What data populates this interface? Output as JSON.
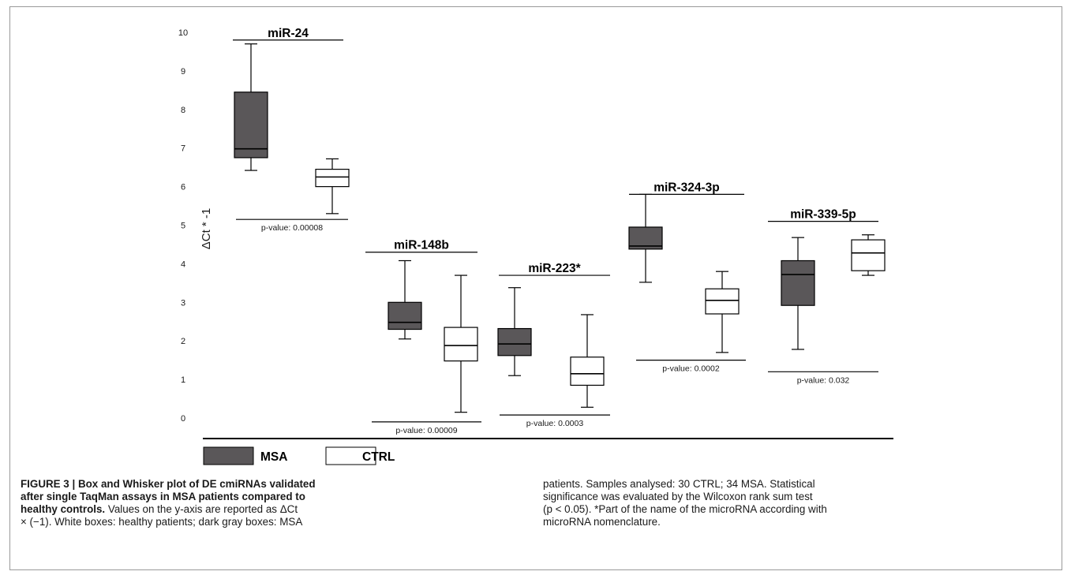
{
  "colors": {
    "msa": "#5a5759",
    "ctrl": "#ffffff",
    "line": "#000000"
  },
  "chart_data": {
    "type": "box",
    "ylabel": "ΔCt * -1",
    "ylim": [
      -0.5,
      10
    ],
    "yticks": [
      0,
      1,
      2,
      3,
      4,
      5,
      6,
      7,
      8,
      9,
      10
    ],
    "legend": [
      {
        "key": "msa",
        "label": "MSA"
      },
      {
        "key": "ctrl",
        "label": "CTRL"
      }
    ],
    "groups": [
      {
        "name": "miR-24",
        "title_y": 9.8,
        "pvalue_label": "p-value: 0.00008",
        "pvalue_y": 5.15,
        "boxes": [
          {
            "key": "msa",
            "min": 6.42,
            "q1": 6.75,
            "median": 6.98,
            "q3": 8.45,
            "max": 9.7
          },
          {
            "key": "ctrl",
            "min": 5.3,
            "q1": 6.0,
            "median": 6.25,
            "q3": 6.45,
            "max": 6.72
          }
        ]
      },
      {
        "name": "miR-148b",
        "title_y": 4.3,
        "pvalue_label": "p-value: 0.00009",
        "pvalue_y": -0.1,
        "boxes": [
          {
            "key": "msa",
            "min": 2.05,
            "q1": 2.3,
            "median": 2.48,
            "q3": 3.0,
            "max": 4.08
          },
          {
            "key": "ctrl",
            "min": 0.15,
            "q1": 1.48,
            "median": 1.88,
            "q3": 2.35,
            "max": 3.7
          }
        ]
      },
      {
        "name": "miR-223*",
        "title_y": 3.7,
        "pvalue_label": "p-value: 0.0003",
        "pvalue_y": 0.08,
        "boxes": [
          {
            "key": "msa",
            "min": 1.1,
            "q1": 1.62,
            "median": 1.92,
            "q3": 2.32,
            "max": 3.38
          },
          {
            "key": "ctrl",
            "min": 0.28,
            "q1": 0.85,
            "median": 1.15,
            "q3": 1.58,
            "max": 2.68
          }
        ]
      },
      {
        "name": "miR-324-3p",
        "title_y": 5.8,
        "pvalue_label": "p-value: 0.0002",
        "pvalue_y": 1.5,
        "boxes": [
          {
            "key": "msa",
            "min": 3.52,
            "q1": 4.38,
            "median": 4.46,
            "q3": 4.95,
            "max": 5.8
          },
          {
            "key": "ctrl",
            "min": 1.7,
            "q1": 2.7,
            "median": 3.05,
            "q3": 3.35,
            "max": 3.8
          }
        ]
      },
      {
        "name": "miR-339-5p",
        "title_y": 5.1,
        "pvalue_label": "p-value: 0.032",
        "pvalue_y": 1.2,
        "boxes": [
          {
            "key": "msa",
            "min": 1.78,
            "q1": 2.92,
            "median": 3.72,
            "q3": 4.08,
            "max": 4.68
          },
          {
            "key": "ctrl",
            "min": 3.7,
            "q1": 3.82,
            "median": 4.28,
            "q3": 4.62,
            "max": 4.75
          }
        ]
      }
    ]
  },
  "caption": {
    "left_lines": [
      [
        {
          "b": true,
          "t": "FIGURE 3 | Box and Whisker plot of DE cmiRNAs validated"
        }
      ],
      [
        {
          "b": true,
          "t": "after single TaqMan assays in MSA patients compared to"
        }
      ],
      [
        {
          "b": true,
          "t": "healthy controls."
        },
        {
          "b": false,
          "t": " Values on the y-axis are reported as ΔCt"
        }
      ],
      [
        {
          "b": false,
          "t": "× (−1). White boxes: healthy patients; dark gray boxes: MSA"
        }
      ]
    ],
    "right_lines": [
      [
        {
          "b": false,
          "t": "patients. Samples analysed: 30 CTRL; 34 MSA. Statistical"
        }
      ],
      [
        {
          "b": false,
          "t": "significance was evaluated by the Wilcoxon rank sum test"
        }
      ],
      [
        {
          "b": false,
          "t": "(p < 0.05). *Part of the name of the microRNA according with"
        }
      ],
      [
        {
          "b": false,
          "t": "microRNA nomenclature."
        }
      ]
    ]
  }
}
